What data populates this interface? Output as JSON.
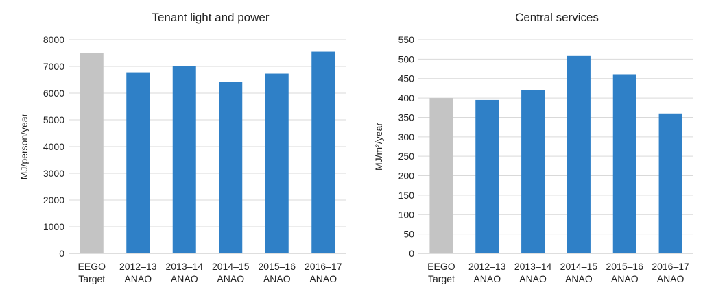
{
  "chart_data": [
    {
      "type": "bar",
      "title": "Tenant light and power",
      "xlabel": "",
      "ylabel": "MJ/person/year",
      "categories": [
        [
          "EEGO",
          "Target"
        ],
        [
          "2012–13",
          "ANAO"
        ],
        [
          "2013–14",
          "ANAO"
        ],
        [
          "2014–15",
          "ANAO"
        ],
        [
          "2015–16",
          "ANAO"
        ],
        [
          "2016–17",
          "ANAO"
        ]
      ],
      "values": [
        7500,
        6780,
        7000,
        6420,
        6730,
        7550
      ],
      "ylim": [
        0,
        8000
      ],
      "yticks": [
        0,
        1000,
        2000,
        3000,
        4000,
        5000,
        6000,
        7000,
        8000
      ],
      "grid": true,
      "bar_colors": [
        "#c4c4c4",
        "#2f80c7",
        "#2f80c7",
        "#2f80c7",
        "#2f80c7",
        "#2f80c7"
      ]
    },
    {
      "type": "bar",
      "title": "Central services",
      "xlabel": "",
      "ylabel": "MJ/m²/year",
      "categories": [
        [
          "EEGO",
          "Target"
        ],
        [
          "2012–13",
          "ANAO"
        ],
        [
          "2013–14",
          "ANAO"
        ],
        [
          "2014–15",
          "ANAO"
        ],
        [
          "2015–16",
          "ANAO"
        ],
        [
          "2016–17",
          "ANAO"
        ]
      ],
      "values": [
        400,
        395,
        420,
        508,
        461,
        360
      ],
      "ylim": [
        0,
        550
      ],
      "yticks": [
        0,
        50,
        100,
        150,
        200,
        250,
        300,
        350,
        400,
        450,
        500,
        550
      ],
      "grid": true,
      "bar_colors": [
        "#c4c4c4",
        "#2f80c7",
        "#2f80c7",
        "#2f80c7",
        "#2f80c7",
        "#2f80c7"
      ]
    }
  ]
}
